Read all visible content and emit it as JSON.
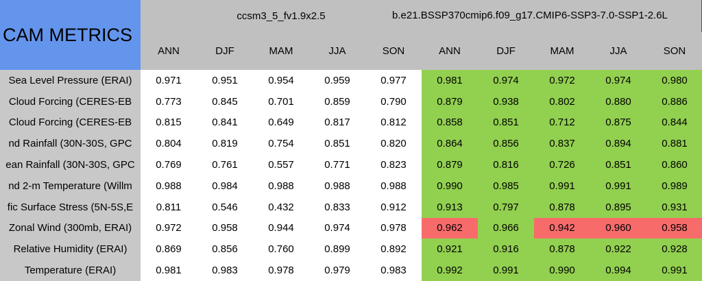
{
  "header": {
    "title": "CAM METRICS",
    "groups": [
      "ccsm3_5_fv1.9x2.5",
      "b.e21.BSSP370cmip6.f09_g17.CMIP6-SSP3-7.0-SSP1-2.6L"
    ],
    "columns": [
      "ANN",
      "DJF",
      "MAM",
      "JJA",
      "SON",
      "ANN",
      "DJF",
      "MAM",
      "JJA",
      "SON"
    ]
  },
  "table": {
    "rows": [
      {
        "label": "Sea Level Pressure (ERAI)",
        "values": [
          "0.971",
          "0.951",
          "0.954",
          "0.959",
          "0.977",
          "0.981",
          "0.974",
          "0.972",
          "0.974",
          "0.980"
        ],
        "colors": [
          "#ffffff",
          "#ffffff",
          "#ffffff",
          "#ffffff",
          "#ffffff",
          "#92d050",
          "#92d050",
          "#92d050",
          "#92d050",
          "#92d050"
        ]
      },
      {
        "label": "Cloud Forcing (CERES-EB",
        "values": [
          "0.773",
          "0.845",
          "0.701",
          "0.859",
          "0.790",
          "0.879",
          "0.938",
          "0.802",
          "0.880",
          "0.886"
        ],
        "colors": [
          "#ffffff",
          "#ffffff",
          "#ffffff",
          "#ffffff",
          "#ffffff",
          "#92d050",
          "#92d050",
          "#92d050",
          "#92d050",
          "#92d050"
        ]
      },
      {
        "label": "Cloud Forcing (CERES-EB",
        "values": [
          "0.815",
          "0.841",
          "0.649",
          "0.817",
          "0.812",
          "0.858",
          "0.851",
          "0.712",
          "0.875",
          "0.844"
        ],
        "colors": [
          "#ffffff",
          "#ffffff",
          "#ffffff",
          "#ffffff",
          "#ffffff",
          "#92d050",
          "#92d050",
          "#92d050",
          "#92d050",
          "#92d050"
        ]
      },
      {
        "label": "nd Rainfall (30N-30S, GPC",
        "values": [
          "0.804",
          "0.819",
          "0.754",
          "0.851",
          "0.820",
          "0.864",
          "0.856",
          "0.837",
          "0.894",
          "0.881"
        ],
        "colors": [
          "#ffffff",
          "#ffffff",
          "#ffffff",
          "#ffffff",
          "#ffffff",
          "#92d050",
          "#92d050",
          "#92d050",
          "#92d050",
          "#92d050"
        ]
      },
      {
        "label": "ean Rainfall (30N-30S, GPC",
        "values": [
          "0.769",
          "0.761",
          "0.557",
          "0.771",
          "0.823",
          "0.879",
          "0.816",
          "0.726",
          "0.851",
          "0.860"
        ],
        "colors": [
          "#ffffff",
          "#ffffff",
          "#ffffff",
          "#ffffff",
          "#ffffff",
          "#92d050",
          "#92d050",
          "#92d050",
          "#92d050",
          "#92d050"
        ]
      },
      {
        "label": "nd 2-m Temperature (Willm",
        "values": [
          "0.988",
          "0.984",
          "0.988",
          "0.988",
          "0.988",
          "0.990",
          "0.985",
          "0.991",
          "0.991",
          "0.989"
        ],
        "colors": [
          "#ffffff",
          "#ffffff",
          "#ffffff",
          "#ffffff",
          "#ffffff",
          "#92d050",
          "#92d050",
          "#92d050",
          "#92d050",
          "#92d050"
        ]
      },
      {
        "label": "fic Surface Stress (5N-5S,E",
        "values": [
          "0.811",
          "0.546",
          "0.432",
          "0.833",
          "0.912",
          "0.913",
          "0.797",
          "0.878",
          "0.895",
          "0.931"
        ],
        "colors": [
          "#ffffff",
          "#ffffff",
          "#ffffff",
          "#ffffff",
          "#ffffff",
          "#92d050",
          "#92d050",
          "#92d050",
          "#92d050",
          "#92d050"
        ]
      },
      {
        "label": "Zonal Wind (300mb, ERAI)",
        "values": [
          "0.972",
          "0.958",
          "0.944",
          "0.974",
          "0.978",
          "0.962",
          "0.966",
          "0.942",
          "0.960",
          "0.958"
        ],
        "colors": [
          "#ffffff",
          "#ffffff",
          "#ffffff",
          "#ffffff",
          "#ffffff",
          "#f86b6b",
          "#92d050",
          "#f86b6b",
          "#f86b6b",
          "#f86b6b"
        ]
      },
      {
        "label": "Relative Humidity (ERAI)",
        "values": [
          "0.869",
          "0.856",
          "0.760",
          "0.899",
          "0.892",
          "0.921",
          "0.916",
          "0.878",
          "0.922",
          "0.928"
        ],
        "colors": [
          "#ffffff",
          "#ffffff",
          "#ffffff",
          "#ffffff",
          "#ffffff",
          "#92d050",
          "#92d050",
          "#92d050",
          "#92d050",
          "#92d050"
        ]
      },
      {
        "label": "Temperature (ERAI)",
        "values": [
          "0.981",
          "0.983",
          "0.978",
          "0.979",
          "0.983",
          "0.992",
          "0.991",
          "0.990",
          "0.994",
          "0.991"
        ],
        "colors": [
          "#ffffff",
          "#ffffff",
          "#ffffff",
          "#ffffff",
          "#ffffff",
          "#92d050",
          "#92d050",
          "#92d050",
          "#92d050",
          "#92d050"
        ]
      }
    ]
  }
}
